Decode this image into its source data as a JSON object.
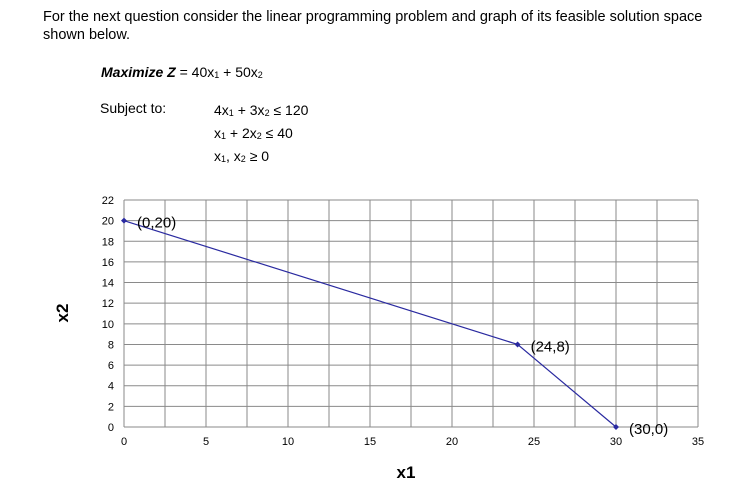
{
  "intro": "For the next question consider the linear programming problem and graph of its feasible solution space shown below.",
  "objective": {
    "prefix": "Maximize Z",
    "expr": [
      {
        "t": "= 40x"
      },
      {
        "sub": "1"
      },
      {
        "t": " + 50x"
      },
      {
        "sub": "2"
      }
    ]
  },
  "subject_to": "Subject to:",
  "constraints": [
    [
      {
        "t": "4x"
      },
      {
        "sub": "1"
      },
      {
        "t": " + 3x"
      },
      {
        "sub": "2"
      },
      {
        "t": "  ≤ 120"
      }
    ],
    [
      {
        "t": "x"
      },
      {
        "sub": "1"
      },
      {
        "t": " + 2x"
      },
      {
        "sub": "2"
      },
      {
        "t": "  ≤ 40"
      }
    ],
    [
      {
        "t": "x"
      },
      {
        "sub": "1"
      },
      {
        "t": ", x"
      },
      {
        "sub": "2"
      },
      {
        "t": " ≥ 0"
      }
    ]
  ],
  "chart_data": {
    "type": "line",
    "xlabel": "x1",
    "ylabel": "x2",
    "xlim": [
      0,
      35
    ],
    "ylim": [
      0,
      22
    ],
    "xticks": [
      0,
      5,
      10,
      15,
      20,
      25,
      30,
      35
    ],
    "yticks": [
      0,
      2,
      4,
      6,
      8,
      10,
      12,
      14,
      16,
      18,
      20,
      22
    ],
    "grid": true,
    "series": [
      {
        "color": "#2a2aa0",
        "points": [
          [
            0,
            20
          ],
          [
            24,
            8
          ],
          [
            30,
            0
          ]
        ],
        "labels": [
          "(0,20)",
          "(24,8)",
          "(30,0)"
        ]
      }
    ]
  }
}
